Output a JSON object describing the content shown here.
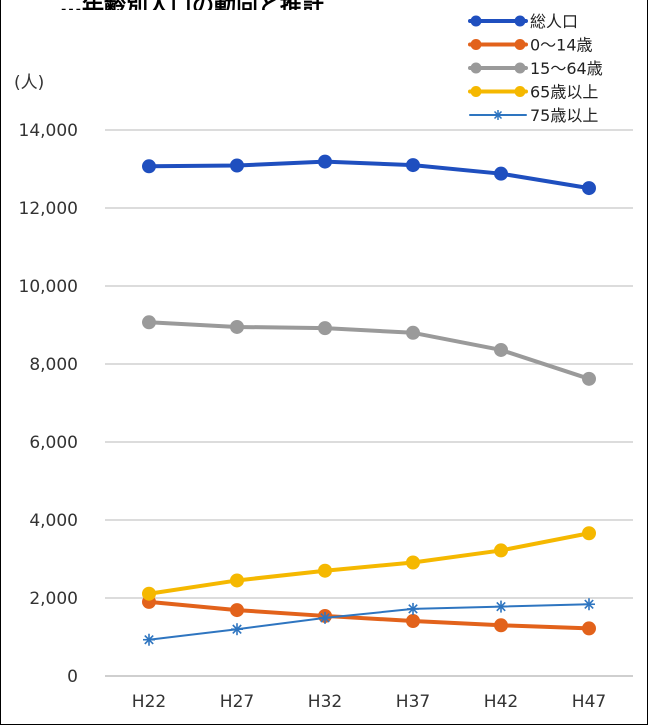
{
  "chart_data": {
    "type": "line",
    "title": "",
    "unit_label": "(人)",
    "categories": [
      "H22",
      "H27",
      "H32",
      "H37",
      "H42",
      "H47"
    ],
    "ylim": [
      0,
      14000
    ],
    "yticks": [
      0,
      2000,
      4000,
      6000,
      8000,
      10000,
      12000,
      14000
    ],
    "ytick_labels": [
      "0",
      "2,000",
      "4,000",
      "6,000",
      "8,000",
      "10,000",
      "12,000",
      "14,000"
    ],
    "grid": true,
    "legend_position": "top-right",
    "series": [
      {
        "name": "総人口",
        "values": [
          13070,
          13090,
          13190,
          13100,
          12880,
          12510
        ],
        "color": "#1f4fbf",
        "marker": "circle"
      },
      {
        "name": "0～14歳",
        "values": [
          1900,
          1690,
          1540,
          1410,
          1300,
          1220
        ],
        "color": "#e2621b",
        "marker": "circle"
      },
      {
        "name": "15～64歳",
        "values": [
          9070,
          8950,
          8920,
          8800,
          8360,
          7620
        ],
        "color": "#9a9a9a",
        "marker": "circle"
      },
      {
        "name": "65歳以上",
        "values": [
          2110,
          2450,
          2700,
          2910,
          3220,
          3660
        ],
        "color": "#f5b800",
        "marker": "circle"
      },
      {
        "name": "75歳以上",
        "values": [
          930,
          1200,
          1490,
          1720,
          1780,
          1840
        ],
        "color": "#2e75c0",
        "marker": "star"
      }
    ]
  },
  "header": {
    "partial_title": "…年齢別人口の動向と推計"
  }
}
